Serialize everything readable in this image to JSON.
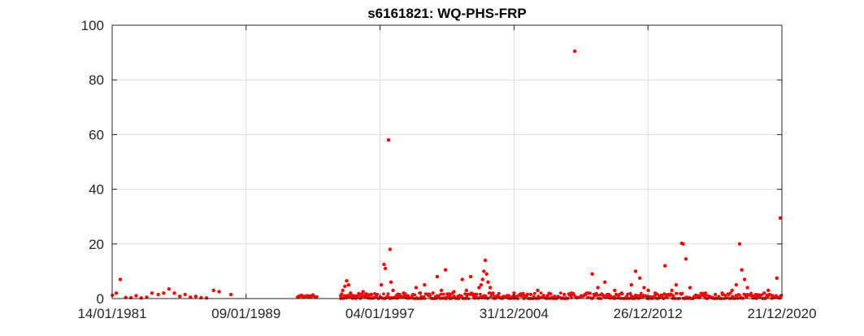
{
  "chart_data": {
    "type": "scatter",
    "title": "s6161821: WQ-PHS-FRP",
    "xlabel": "",
    "ylabel": "",
    "x_axis_type": "date",
    "xlim": [
      "1981-01-14",
      "2020-12-21"
    ],
    "ylim": [
      0,
      100
    ],
    "x_ticks": [
      "1981-01-14",
      "1989-01-09",
      "1997-01-04",
      "2004-12-31",
      "2012-12-26",
      "2020-12-21"
    ],
    "x_tick_labels": [
      "14/01/1981",
      "09/01/1989",
      "04/01/1997",
      "31/12/2004",
      "26/12/2012",
      "21/12/2020"
    ],
    "y_ticks": [
      0,
      20,
      40,
      60,
      80,
      100
    ],
    "y_tick_labels": [
      "0",
      "20",
      "40",
      "60",
      "80",
      "100"
    ],
    "grid": true,
    "legend": "none",
    "marker_color": "#ff0000",
    "series": [
      {
        "points": [
          [
            "1981-01-20",
            1.2
          ],
          [
            "1981-04-15",
            2.0
          ],
          [
            "1981-07-10",
            7.0
          ],
          [
            "1981-11-05",
            0.4
          ],
          [
            "1982-03-01",
            0.3
          ],
          [
            "1982-06-20",
            1.0
          ],
          [
            "1982-10-10",
            0.2
          ],
          [
            "1983-02-05",
            0.5
          ],
          [
            "1983-06-01",
            2.0
          ],
          [
            "1983-10-15",
            1.5
          ],
          [
            "1984-02-10",
            2.0
          ],
          [
            "1984-06-05",
            3.5
          ],
          [
            "1984-10-01",
            2.0
          ],
          [
            "1985-01-25",
            0.8
          ],
          [
            "1985-05-20",
            1.5
          ],
          [
            "1985-09-15",
            0.5
          ],
          [
            "1986-01-10",
            0.8
          ],
          [
            "1986-05-05",
            0.3
          ],
          [
            "1986-09-01",
            0.2
          ],
          [
            "1987-02-01",
            3.0
          ],
          [
            "1987-06-01",
            2.5
          ],
          [
            "1988-02-15",
            1.5
          ],
          [
            "1992-03-01",
            0.8
          ],
          [
            "1992-05-01",
            1.2
          ],
          [
            "1992-07-01",
            0.6
          ],
          [
            "1992-09-01",
            1.0
          ],
          [
            "1992-11-01",
            0.9
          ],
          [
            "1993-01-01",
            1.3
          ],
          [
            "1993-03-01",
            0.5
          ],
          [
            "1994-09-01",
            1.0
          ],
          [
            "1994-10-15",
            3.0
          ],
          [
            "1994-12-01",
            4.5
          ],
          [
            "1995-01-10",
            6.5
          ],
          [
            "1995-02-20",
            5.0
          ],
          [
            "1995-04-01",
            2.0
          ],
          [
            "1995-06-01",
            1.0
          ],
          [
            "1995-08-01",
            0.8
          ],
          [
            "1995-10-01",
            1.8
          ],
          [
            "1996-01-01",
            2.5
          ],
          [
            "1996-03-01",
            1.0
          ],
          [
            "1996-05-01",
            0.6
          ],
          [
            "1996-07-01",
            1.5
          ],
          [
            "1996-10-01",
            0.5
          ],
          [
            "1997-02-01",
            5.0
          ],
          [
            "1997-04-01",
            12.5
          ],
          [
            "1997-05-01",
            11.0
          ],
          [
            "1997-07-10",
            58.0
          ],
          [
            "1997-08-10",
            18.0
          ],
          [
            "1997-09-01",
            6.0
          ],
          [
            "1997-10-15",
            3.0
          ],
          [
            "1998-01-01",
            1.2
          ],
          [
            "1998-03-01",
            0.6
          ],
          [
            "1998-06-01",
            2.0
          ],
          [
            "1998-09-01",
            1.0
          ],
          [
            "1998-12-01",
            0.5
          ],
          [
            "1999-03-01",
            4.0
          ],
          [
            "1999-06-01",
            2.0
          ],
          [
            "1999-09-01",
            5.0
          ],
          [
            "1999-12-01",
            1.0
          ],
          [
            "2000-03-01",
            2.0
          ],
          [
            "2000-06-01",
            8.0
          ],
          [
            "2000-09-01",
            3.0
          ],
          [
            "2000-12-01",
            10.5
          ],
          [
            "2001-03-01",
            1.0
          ],
          [
            "2001-06-01",
            2.5
          ],
          [
            "2001-09-01",
            0.8
          ],
          [
            "2001-12-01",
            7.0
          ],
          [
            "2002-03-01",
            3.0
          ],
          [
            "2002-06-01",
            8.0
          ],
          [
            "2002-09-01",
            1.5
          ],
          [
            "2002-12-01",
            4.0
          ],
          [
            "2003-01-15",
            5.0
          ],
          [
            "2003-02-15",
            7.0
          ],
          [
            "2003-03-15",
            10.0
          ],
          [
            "2003-04-15",
            14.0
          ],
          [
            "2003-05-15",
            9.0
          ],
          [
            "2003-06-15",
            6.0
          ],
          [
            "2003-08-01",
            4.0
          ],
          [
            "2003-10-01",
            2.0
          ],
          [
            "2004-01-01",
            1.0
          ],
          [
            "2004-06-01",
            0.6
          ],
          [
            "2005-01-01",
            2.0
          ],
          [
            "2005-06-01",
            1.0
          ],
          [
            "2006-01-01",
            1.5
          ],
          [
            "2006-06-01",
            3.0
          ],
          [
            "2007-01-01",
            1.0
          ],
          [
            "2007-06-01",
            0.8
          ],
          [
            "2008-01-01",
            1.5
          ],
          [
            "2008-06-01",
            2.0
          ],
          [
            "2008-08-15",
            90.5
          ],
          [
            "2009-01-01",
            1.0
          ],
          [
            "2009-06-01",
            2.0
          ],
          [
            "2009-09-01",
            9.0
          ],
          [
            "2010-01-01",
            4.0
          ],
          [
            "2010-06-01",
            6.0
          ],
          [
            "2011-01-01",
            3.0
          ],
          [
            "2011-06-01",
            2.0
          ],
          [
            "2012-01-01",
            5.0
          ],
          [
            "2012-04-01",
            10.0
          ],
          [
            "2012-07-01",
            7.5
          ],
          [
            "2012-10-01",
            4.0
          ],
          [
            "2013-01-01",
            3.0
          ],
          [
            "2013-06-01",
            2.0
          ],
          [
            "2014-01-01",
            12.0
          ],
          [
            "2014-06-01",
            3.0
          ],
          [
            "2014-09-01",
            5.0
          ],
          [
            "2015-01-01",
            20.2
          ],
          [
            "2015-02-01",
            20.0
          ],
          [
            "2015-04-01",
            14.5
          ],
          [
            "2015-07-01",
            4.0
          ],
          [
            "2016-01-01",
            1.0
          ],
          [
            "2016-06-01",
            2.0
          ],
          [
            "2017-01-01",
            1.5
          ],
          [
            "2017-06-01",
            2.0
          ],
          [
            "2018-01-01",
            3.0
          ],
          [
            "2018-04-01",
            5.0
          ],
          [
            "2018-06-15",
            20.0
          ],
          [
            "2018-08-01",
            10.5
          ],
          [
            "2018-10-01",
            7.0
          ],
          [
            "2018-12-01",
            4.0
          ],
          [
            "2019-03-01",
            1.0
          ],
          [
            "2019-06-01",
            0.8
          ],
          [
            "2019-09-01",
            1.2
          ],
          [
            "2019-12-01",
            2.0
          ],
          [
            "2020-03-01",
            3.0
          ],
          [
            "2020-06-01",
            1.0
          ],
          [
            "2020-09-01",
            7.5
          ],
          [
            "2020-11-15",
            29.5
          ]
        ]
      }
    ],
    "baseline_noise": {
      "segments": [
        [
          "1994-09-01",
          "2020-12-15",
          1.3
        ]
      ]
    }
  }
}
